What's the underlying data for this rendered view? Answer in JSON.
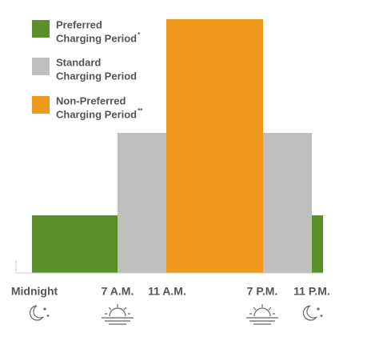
{
  "legend": [
    {
      "line1": "Preferred",
      "line2": "Charging Period",
      "mark": "*"
    },
    {
      "line1": "Standard",
      "line2": "Charging Period"
    },
    {
      "line1": "Non-Preferred",
      "line2": "Charging Period",
      "mark": "**"
    }
  ],
  "times": [
    "Midnight",
    "7 A.M.",
    "11 A.M.",
    "7 P.M.",
    "11 P.M."
  ]
}
